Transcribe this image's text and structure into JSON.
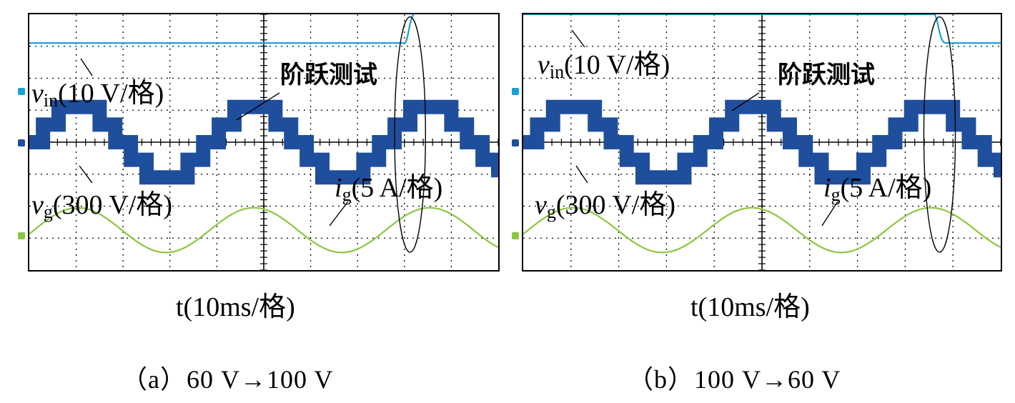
{
  "panels": [
    {
      "id": "a",
      "caption": "（a）60 V→100 V",
      "xlabel": "t(10ms/格)",
      "annotation_step": "阶跃测试",
      "label_vin": {
        "sym": "v",
        "sub": "in",
        "scale": "(10 V/格)"
      },
      "label_vg": {
        "sym": "v",
        "sub": "g",
        "scale": "(300 V/格)"
      },
      "label_ig": {
        "sym": "i",
        "sub": "g",
        "scale": "(5 A/格)"
      }
    },
    {
      "id": "b",
      "caption": "（b）100 V→60 V",
      "xlabel": "t(10ms/格)",
      "annotation_step": "阶跃测试",
      "label_vin": {
        "sym": "v",
        "sub": "in",
        "scale": "(10 V/格)"
      },
      "label_vg": {
        "sym": "v",
        "sub": "g",
        "scale": "(300 V/格)"
      },
      "label_ig": {
        "sym": "i",
        "sub": "g",
        "scale": "(5 A/格)"
      }
    }
  ],
  "chart_data": [
    {
      "type": "line",
      "x_divisions": 10,
      "y_divisions": 8,
      "x_units_per_div": "10ms",
      "grid": true,
      "step_time_div": 8.0,
      "series": [
        {
          "name": "vin",
          "color": "#1aa0d8",
          "before_div": 7.1,
          "after_div": 8.05
        },
        {
          "name": "vg",
          "color": "#1f4e9c",
          "type": "multilevel",
          "center_div": 4.0,
          "levels_div": [
            0.0,
            0.55,
            1.1
          ],
          "period_div": 3.75,
          "phase_div": 0.1
        },
        {
          "name": "ig",
          "color": "#8cc63f",
          "type": "sine",
          "center_div": 1.25,
          "amplitude_div": 0.7,
          "period_div": 3.75
        }
      ],
      "colors": {
        "vin": "#1aa0d8",
        "vg": "#1f4e9c",
        "ig": "#8cc63f"
      }
    },
    {
      "type": "line",
      "x_divisions": 10,
      "y_divisions": 8,
      "x_units_per_div": "10ms",
      "grid": true,
      "step_time_div": 8.6,
      "series": [
        {
          "name": "vin",
          "color": "#1aa0d8",
          "before_div": 8.0,
          "after_div": 7.1
        },
        {
          "name": "vg",
          "color": "#1f4e9c",
          "type": "multilevel",
          "center_div": 4.0,
          "levels_div": [
            0.0,
            0.55,
            1.1
          ],
          "period_div": 3.75,
          "phase_div": 0.1
        },
        {
          "name": "ig",
          "color": "#8cc63f",
          "type": "sine",
          "center_div": 1.25,
          "amplitude_div": 0.7,
          "period_div": 3.75
        }
      ],
      "colors": {
        "vin": "#1aa0d8",
        "vg": "#1f4e9c",
        "ig": "#8cc63f"
      }
    }
  ]
}
